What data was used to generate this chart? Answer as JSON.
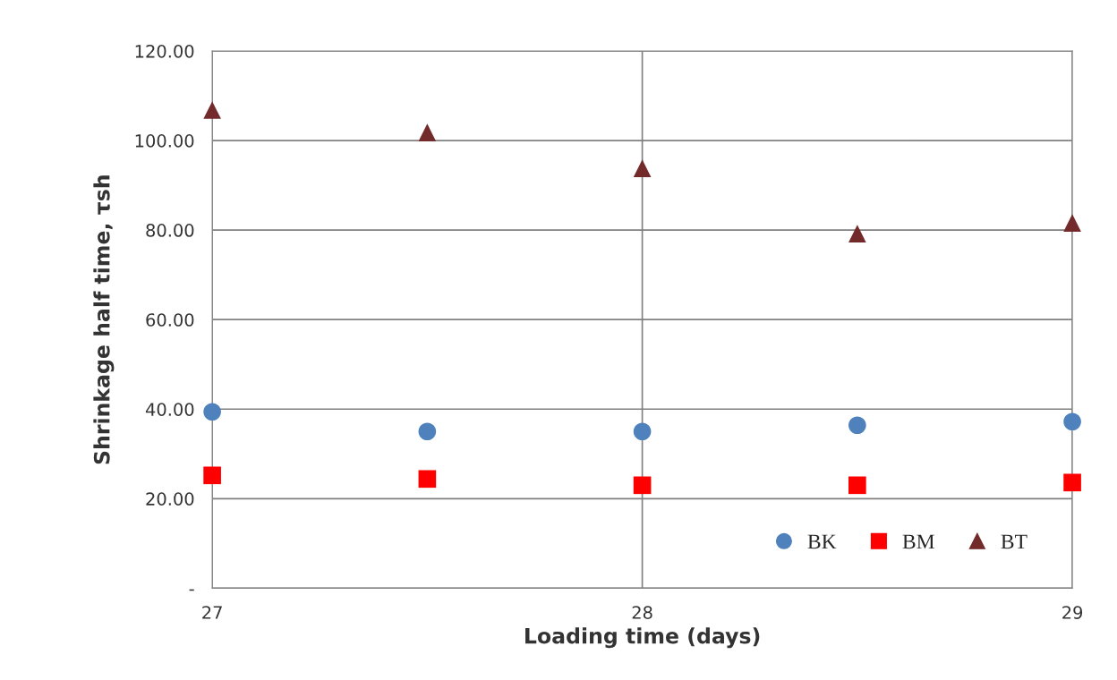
{
  "chart_data": {
    "type": "scatter",
    "xlabel": "Loading time (days)",
    "ylabel": "Shrinkage half time, τsh",
    "x": [
      27,
      27.5,
      28,
      28.5,
      29
    ],
    "series": [
      {
        "name": "BK",
        "color": "#4f81bd",
        "marker": "circle",
        "values": [
          39.4,
          35,
          35,
          36.4,
          37.2
        ]
      },
      {
        "name": "BM",
        "color": "#ff0000",
        "marker": "square",
        "values": [
          25.2,
          24.4,
          23,
          23,
          23.6
        ]
      },
      {
        "name": "BT",
        "color": "#722a2a",
        "marker": "triangle",
        "values": [
          106.8,
          101.8,
          93.8,
          79.2,
          81.6
        ]
      }
    ],
    "xlim": [
      27,
      29
    ],
    "xticks": [
      27,
      28,
      29
    ],
    "ylim": [
      0,
      120
    ],
    "yticks": [
      {
        "value": 0,
        "label": "-"
      },
      {
        "value": 20,
        "label": "20.00"
      },
      {
        "value": 40,
        "label": "40.00"
      },
      {
        "value": 60,
        "label": "60.00"
      },
      {
        "value": 80,
        "label": "80.00"
      },
      {
        "value": 100,
        "label": "100.00"
      },
      {
        "value": 120,
        "label": "120.00"
      }
    ],
    "grid": true,
    "legend": "bottom right"
  }
}
